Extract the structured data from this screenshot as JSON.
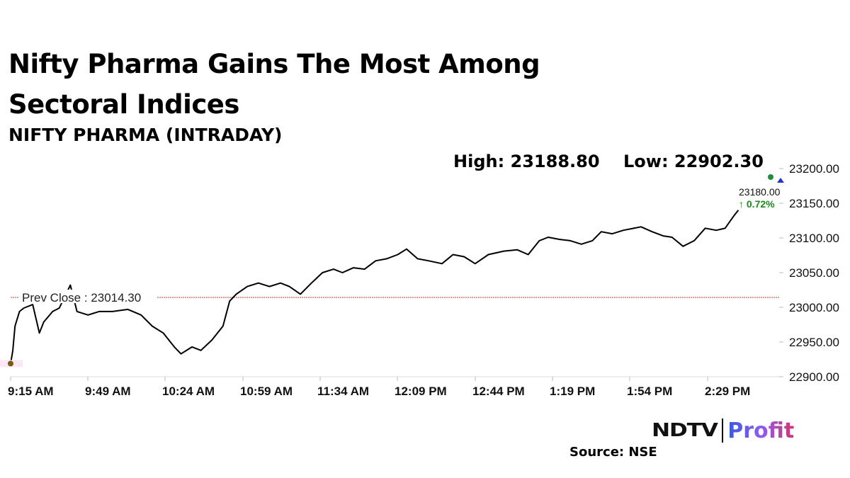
{
  "title": "Nifty Pharma Gains The Most Among Sectoral Indices",
  "subtitle": "NIFTY PHARMA (INTRADAY)",
  "high_label": "High: 23188.80",
  "low_label": "Low: 22902.30",
  "source": "Source: NSE",
  "logo": {
    "ndtv": "NDTV",
    "profit": "Profit"
  },
  "chart_data": {
    "type": "line",
    "title": "NIFTY PHARMA (INTRADAY)",
    "ylim": [
      22900,
      23200
    ],
    "y_ticks": [
      "22900.00",
      "22950.00",
      "23000.00",
      "23050.00",
      "23100.00",
      "23150.00",
      "23200.00"
    ],
    "x_ticks": [
      "9:15 AM",
      "9:49 AM",
      "10:24 AM",
      "10:59 AM",
      "11:34 AM",
      "12:09 PM",
      "12:44 PM",
      "1:19 PM",
      "1:54 PM",
      "2:29 PM"
    ],
    "prev_close": {
      "label": "Prev Close : 23014.30",
      "value": 23014.3,
      "color": "#c0392b"
    },
    "last": {
      "value_label": "23180.00",
      "change_label": "↑ 0.72%",
      "change_color": "#1a8a1a"
    },
    "line_color": "#000000",
    "series": [
      {
        "x": [
          "9:15",
          "9:16",
          "9:17",
          "9:19",
          "9:21",
          "9:25",
          "9:28",
          "9:30",
          "9:34",
          "9:37",
          "9:42",
          "9:45",
          "9:50",
          "9:55",
          "10:01",
          "10:08",
          "10:14",
          "10:19",
          "10:24",
          "10:29",
          "10:32",
          "10:37",
          "10:41",
          "10:46",
          "10:51",
          "10:54",
          "10:57",
          "11:02",
          "11:07",
          "11:12",
          "11:17",
          "11:21",
          "11:26",
          "11:31",
          "11:36",
          "11:41",
          "11:45",
          "11:50",
          "11:55",
          "12:00",
          "12:05",
          "12:10",
          "12:14",
          "12:19",
          "12:24",
          "12:30",
          "12:35",
          "12:40",
          "12:45",
          "12:51",
          "12:58",
          "13:04",
          "13:09",
          "13:14",
          "13:18",
          "13:23",
          "13:28",
          "13:33",
          "13:38",
          "13:42",
          "13:47",
          "13:52",
          "14:00",
          "14:05",
          "14:10",
          "14:14",
          "14:19",
          "14:24",
          "14:29",
          "14:34",
          "14:38",
          "14:42",
          "14:44"
        ],
        "values": [
          22919,
          22938,
          22973,
          22994,
          22999,
          23004,
          22963,
          22979,
          22994,
          22999,
          23032,
          22994,
          22989,
          22994,
          22994,
          22997,
          22989,
          22973,
          22963,
          22943,
          22933,
          22943,
          22938,
          22953,
          22973,
          23009,
          23019,
          23030,
          23035,
          23030,
          23035,
          23030,
          23019,
          23035,
          23050,
          23055,
          23050,
          23057,
          23055,
          23067,
          23070,
          23076,
          23084,
          23070,
          23067,
          23063,
          23076,
          23073,
          23063,
          23076,
          23081,
          23083,
          23076,
          23096,
          23101,
          23098,
          23096,
          23091,
          23096,
          23109,
          23106,
          23111,
          23116,
          23109,
          23103,
          23101,
          23088,
          23096,
          23114,
          23111,
          23114,
          23132,
          23140
        ]
      }
    ]
  }
}
